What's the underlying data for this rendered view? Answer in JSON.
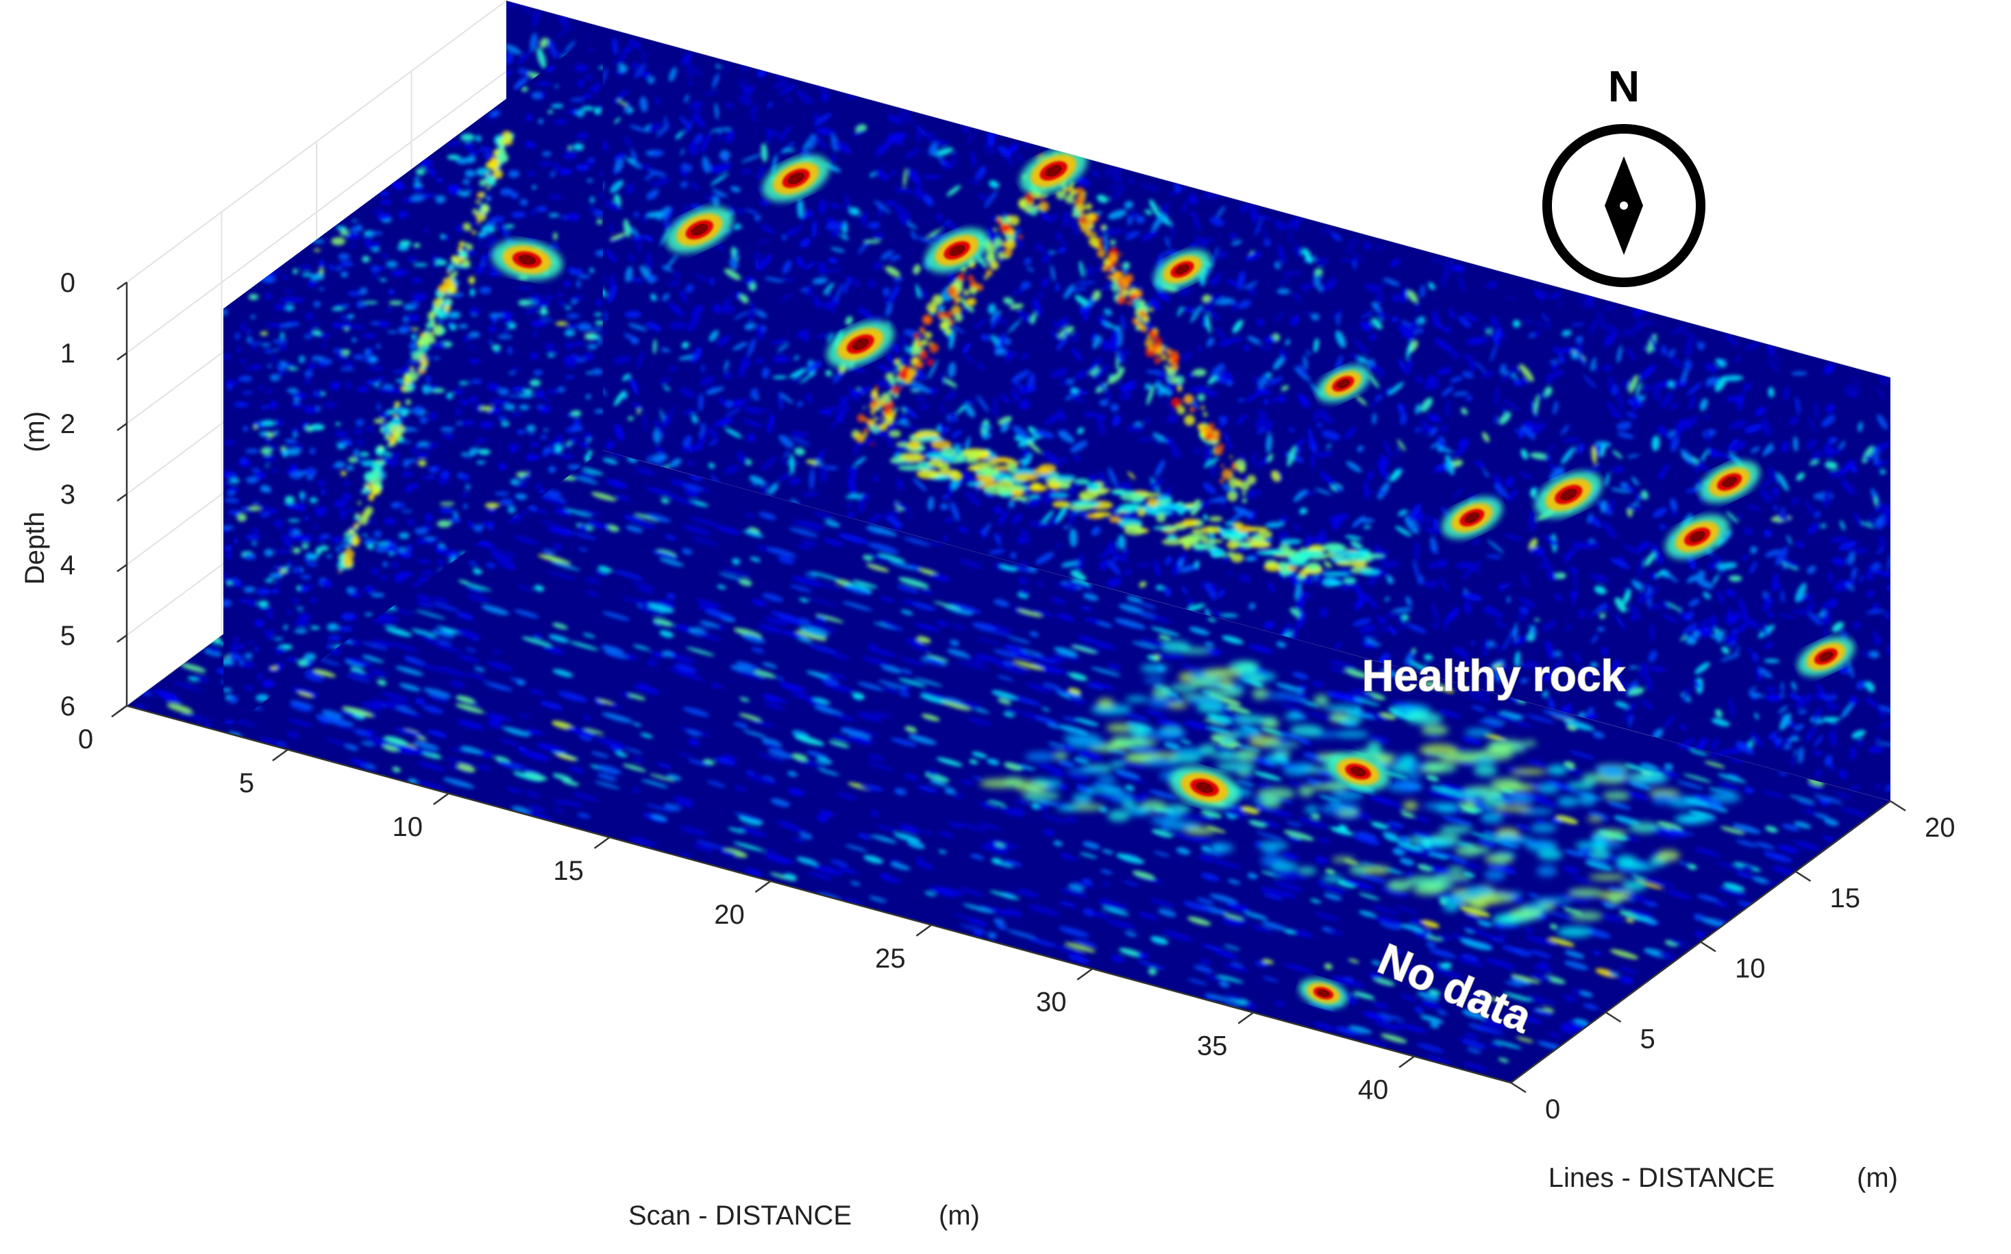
{
  "chart_data": {
    "type": "heatmap",
    "view": "3d-slices",
    "colormap": "jet",
    "colormap_stops": [
      "#00007f",
      "#0000ff",
      "#00ffff",
      "#ffff00",
      "#ff0000",
      "#7f0000"
    ],
    "axes": {
      "x": {
        "label": "Scan - DISTANCE",
        "unit": "(m)",
        "range": [
          0,
          43
        ],
        "ticks": [
          0,
          5,
          10,
          15,
          20,
          25,
          30,
          35,
          40
        ]
      },
      "y": {
        "label": "Lines - DISTANCE",
        "unit": "(m)",
        "range": [
          0,
          20
        ],
        "ticks": [
          0,
          5,
          10,
          15,
          20
        ]
      },
      "z": {
        "label": "Depth",
        "unit": "(m)",
        "range": [
          0,
          6
        ],
        "ticks": [
          0,
          1,
          2,
          3,
          4,
          5,
          6
        ]
      }
    },
    "slices": [
      {
        "name": "depth-slice",
        "plane": "z",
        "value": 6
      },
      {
        "name": "lines-slice",
        "plane": "y",
        "value": 20
      },
      {
        "name": "scan-slice",
        "plane": "x",
        "value": 3
      }
    ],
    "anomalies": [
      {
        "slice": "lines-slice",
        "x": 6,
        "z": 2.5,
        "strength": 1.0
      },
      {
        "slice": "lines-slice",
        "x": 9,
        "z": 1.4,
        "strength": 1.0
      },
      {
        "slice": "lines-slice",
        "x": 11,
        "z": 3.5,
        "strength": 1.0
      },
      {
        "slice": "lines-slice",
        "x": 14,
        "z": 1.8,
        "strength": 0.95
      },
      {
        "slice": "lines-slice",
        "x": 17,
        "z": 0.3,
        "strength": 1.0
      },
      {
        "slice": "lines-slice",
        "x": 21,
        "z": 1.2,
        "strength": 0.85
      },
      {
        "slice": "lines-slice",
        "x": 26,
        "z": 2.2,
        "strength": 0.8
      },
      {
        "slice": "lines-slice",
        "x": 30,
        "z": 3.6,
        "strength": 0.9
      },
      {
        "slice": "lines-slice",
        "x": 33,
        "z": 2.9,
        "strength": 1.0
      },
      {
        "slice": "lines-slice",
        "x": 37,
        "z": 3.0,
        "strength": 0.95
      },
      {
        "slice": "lines-slice",
        "x": 38,
        "z": 2.1,
        "strength": 0.9
      },
      {
        "slice": "lines-slice",
        "x": 41,
        "z": 4.2,
        "strength": 0.85
      },
      {
        "slice": "scan-slice",
        "y": 16,
        "z": 2.5,
        "strength": 1.0
      },
      {
        "slice": "depth-slice",
        "x": 27,
        "y": 11,
        "strength": 1.0
      },
      {
        "slice": "depth-slice",
        "x": 30,
        "y": 14,
        "strength": 0.9
      },
      {
        "slice": "depth-slice",
        "x": 36,
        "y": 2,
        "strength": 0.7
      }
    ],
    "annotations": [
      "Healthy rock",
      "No data"
    ]
  },
  "compass": {
    "letter": "N"
  }
}
